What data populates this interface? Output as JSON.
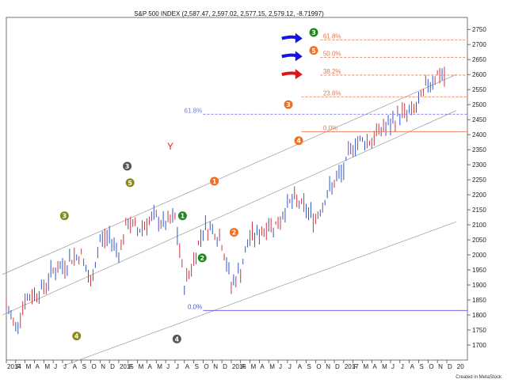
{
  "chart_data": {
    "type": "candlestick",
    "title": "S&P 500 INDEX (2,587.47, 2,597.02, 2,577.15, 2,579.12, -8.71997)",
    "footer": "Created in MetaStock",
    "ylim": [
      1650,
      2790
    ],
    "y_ticks": [
      1700,
      1750,
      1800,
      1850,
      1900,
      1950,
      2000,
      2050,
      2100,
      2150,
      2200,
      2250,
      2300,
      2350,
      2400,
      2450,
      2500,
      2550,
      2600,
      2650,
      2700,
      2750
    ],
    "x_months": [
      "2014",
      "F",
      "M",
      "A",
      "M",
      "J",
      "J",
      "A",
      "S",
      "O",
      "N",
      "D",
      "2015",
      "F",
      "M",
      "A",
      "M",
      "J",
      "J",
      "A",
      "S",
      "O",
      "N",
      "D",
      "2016",
      "F",
      "M",
      "A",
      "M",
      "J",
      "J",
      "A",
      "S",
      "O",
      "N",
      "D",
      "2017",
      "F",
      "M",
      "A",
      "M",
      "J",
      "J",
      "A",
      "S",
      "O",
      "N",
      "D"
    ],
    "x_extra_label": "20",
    "price_path": [
      [
        0,
        1830
      ],
      [
        1,
        1760
      ],
      [
        2,
        1850
      ],
      [
        3,
        1870
      ],
      [
        4,
        1890
      ],
      [
        5,
        1950
      ],
      [
        6,
        1960
      ],
      [
        7,
        1990
      ],
      [
        8,
        2000
      ],
      [
        9,
        1900
      ],
      [
        10,
        2050
      ],
      [
        11,
        2060
      ],
      [
        12,
        2010
      ],
      [
        13,
        2110
      ],
      [
        14,
        2080
      ],
      [
        15,
        2110
      ],
      [
        16,
        2120
      ],
      [
        17,
        2100
      ],
      [
        18,
        2120
      ],
      [
        19,
        1900
      ],
      [
        20,
        1980
      ],
      [
        21,
        2090
      ],
      [
        22,
        2090
      ],
      [
        23,
        2040
      ],
      [
        24,
        1900
      ],
      [
        25,
        1950
      ],
      [
        26,
        2060
      ],
      [
        27,
        2070
      ],
      [
        28,
        2100
      ],
      [
        29,
        2100
      ],
      [
        30,
        2170
      ],
      [
        31,
        2180
      ],
      [
        32,
        2150
      ],
      [
        33,
        2120
      ],
      [
        34,
        2190
      ],
      [
        35,
        2240
      ],
      [
        36,
        2280
      ],
      [
        37,
        2370
      ],
      [
        38,
        2380
      ],
      [
        39,
        2380
      ],
      [
        40,
        2420
      ],
      [
        41,
        2430
      ],
      [
        42,
        2470
      ],
      [
        43,
        2470
      ],
      [
        44,
        2500
      ],
      [
        45,
        2570
      ],
      [
        46,
        2600
      ],
      [
        47,
        2590
      ]
    ],
    "horizontal_levels": [
      {
        "label": "61.8%",
        "value": 2715,
        "color": "#e8734a"
      },
      {
        "label": "50.0%",
        "value": 2657,
        "color": "#e8734a"
      },
      {
        "label": "38.2%",
        "value": 2598,
        "color": "#e8734a"
      },
      {
        "label": "23.6%",
        "value": 2525,
        "color": "#e8734a"
      },
      {
        "label": "0.0%",
        "value": 2410,
        "color": "#e8734a"
      },
      {
        "label": "61.8%",
        "value": 2468,
        "color": "#7777ee"
      },
      {
        "label": "0.0%",
        "value": 1815,
        "color": "#5555dd"
      }
    ],
    "wave_labels": [
      {
        "text": "3",
        "x": 6.2,
        "y": 2130,
        "color": "#8a8a1a"
      },
      {
        "text": "4",
        "x": 7.5,
        "y": 1730,
        "color": "#8a8a1a"
      },
      {
        "text": "5",
        "x": 13.2,
        "y": 2240,
        "color": "#8a8a1a"
      },
      {
        "text": "3",
        "x": 12.9,
        "y": 2295,
        "color": "#555555"
      },
      {
        "text": "4",
        "x": 18.2,
        "y": 1720,
        "color": "#555555"
      },
      {
        "text": "1",
        "x": 18.8,
        "y": 2130,
        "color": "#1a8a1a"
      },
      {
        "text": "2",
        "x": 20.9,
        "y": 1990,
        "color": "#1a8a1a"
      },
      {
        "text": "1",
        "x": 22.2,
        "y": 2245,
        "color": "#f07020"
      },
      {
        "text": "2",
        "x": 24.3,
        "y": 2075,
        "color": "#f07020"
      },
      {
        "text": "3",
        "x": 30.1,
        "y": 2500,
        "color": "#f07020"
      },
      {
        "text": "4",
        "x": 31.2,
        "y": 2380,
        "color": "#f07020"
      },
      {
        "text": "3",
        "x": 32.8,
        "y": 2740,
        "color": "#1a8a1a"
      },
      {
        "text": "5",
        "x": 32.8,
        "y": 2680,
        "color": "#f07020"
      }
    ],
    "arrows": [
      {
        "y": 2720,
        "color": "#1515e0"
      },
      {
        "y": 2660,
        "color": "#1515e0"
      },
      {
        "y": 2600,
        "color": "#e01515"
      }
    ],
    "center_label": "Y"
  }
}
